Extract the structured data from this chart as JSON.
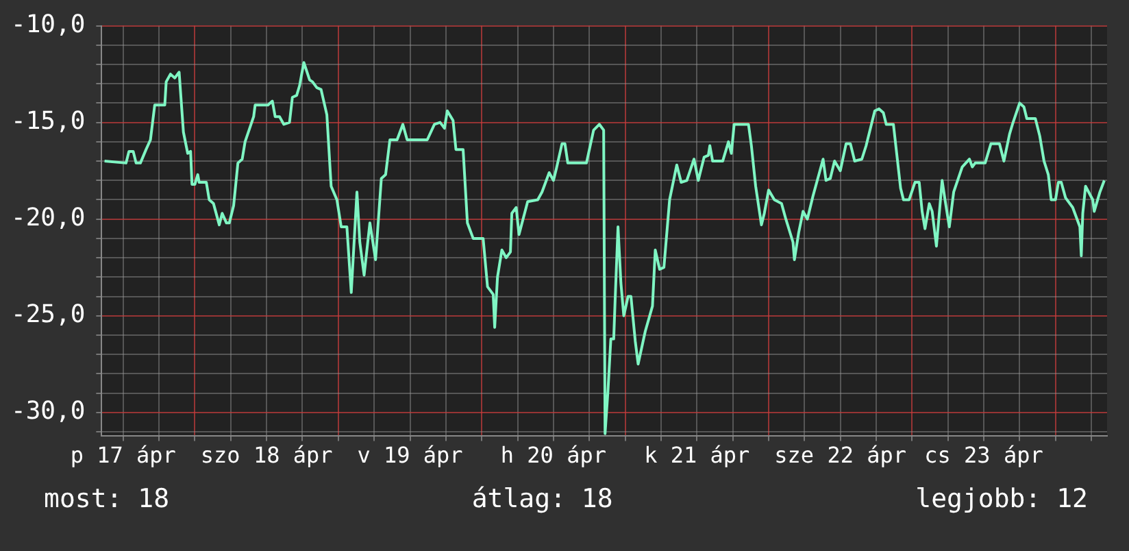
{
  "chart_data": {
    "type": "line",
    "annotations": [
      "most: 18",
      "átlag: 18",
      "legjobb: 12"
    ],
    "x": [
      "--04-17T08:53",
      "--04-17T12:29",
      "--04-17T12:58",
      "--04-17T13:41",
      "--04-17T14:10",
      "--04-17T14:53",
      "--04-17T15:50",
      "--04-17T16:34",
      "--04-17T17:17",
      "--04-17T18:58",
      "--04-17T19:12",
      "--04-17T19:55",
      "--04-17T20:38",
      "--04-17T21:22",
      "--04-17T22:05",
      "--04-17T22:48",
      "--04-17T23:17",
      "--04-17T23:31",
      "--04-18T00:00",
      "--04-18T00:29",
      "--04-18T00:43",
      "--04-18T01:55",
      "--04-18T02:24",
      "--04-18T03:07",
      "--04-18T04:05",
      "--04-18T04:34",
      "--04-18T05:17",
      "--04-18T05:46",
      "--04-18T06:29",
      "--04-18T07:12",
      "--04-18T07:55",
      "--04-18T08:24",
      "--04-18T09:50",
      "--04-18T10:05",
      "--04-18T12:14",
      "--04-18T12:58",
      "--04-18T13:26",
      "--04-18T14:10",
      "--04-18T14:53",
      "--04-18T15:50",
      "--04-18T16:19",
      "--04-18T17:02",
      "--04-18T17:31",
      "--04-18T18:14",
      "--04-18T19:12",
      "--04-18T19:41",
      "--04-18T20:24",
      "--04-18T21:07",
      "--04-18T22:05",
      "--04-18T22:48",
      "--04-18T23:46",
      "--04-19T00:29",
      "--04-19T01:26",
      "--04-19T02:10",
      "--04-19T03:07",
      "--04-19T03:36",
      "--04-19T04:19",
      "--04-19T05:17",
      "--04-19T06:14",
      "--04-19T07:12",
      "--04-19T07:55",
      "--04-19T08:38",
      "--04-19T09:50",
      "--04-19T10:48",
      "--04-19T11:31",
      "--04-19T14:53",
      "--04-19T16:05",
      "--04-19T17:02",
      "--04-19T17:46",
      "--04-19T18:14",
      "--04-19T19:12",
      "--04-19T19:41",
      "--04-19T20:53",
      "--04-19T21:36",
      "--04-19T22:34",
      "--04-20T00:14",
      "--04-20T00:58",
      "--04-20T01:55",
      "--04-20T02:10",
      "--04-20T02:38",
      "--04-20T03:22",
      "--04-20T04:05",
      "--04-20T04:48",
      "--04-20T05:02",
      "--04-20T05:46",
      "--04-20T06:14",
      "--04-20T07:41",
      "--04-20T09:22",
      "--04-20T10:05",
      "--04-20T11:17",
      "--04-20T12:00",
      "--04-20T12:29",
      "--04-20T13:26",
      "--04-20T13:55",
      "--04-20T14:24",
      "--04-20T17:31",
      "--04-20T18:43",
      "--04-20T19:41",
      "--04-20T20:24",
      "--04-20T20:38",
      "--04-20T21:07",
      "--04-20T21:36",
      "--04-20T22:05",
      "--04-20T22:19",
      "--04-20T22:48",
      "--04-20T23:17",
      "--04-20T23:46",
      "--04-21T00:29",
      "--04-21T00:58",
      "--04-21T01:41",
      "--04-21T02:10",
      "--04-21T03:22",
      "--04-21T04:34",
      "--04-21T05:02",
      "--04-21T05:46",
      "--04-21T06:29",
      "--04-21T07:26",
      "--04-21T08:38",
      "--04-21T09:22",
      "--04-21T10:19",
      "--04-21T11:31",
      "--04-21T12:14",
      "--04-21T13:12",
      "--04-21T13:55",
      "--04-21T14:10",
      "--04-21T14:38",
      "--04-21T16:19",
      "--04-21T17:17",
      "--04-21T17:46",
      "--04-21T18:14",
      "--04-21T19:55",
      "--04-21T20:38",
      "--04-21T21:07",
      "--04-21T21:50",
      "--04-21T22:48",
      "--04-21T23:17",
      "--04-22T00:00",
      "--04-22T00:58",
      "--04-22T02:10",
      "--04-22T02:53",
      "--04-22T04:05",
      "--04-22T04:19",
      "--04-22T05:02",
      "--04-22T05:46",
      "--04-22T06:29",
      "--04-22T07:26",
      "--04-22T09:07",
      "--04-22T09:36",
      "--04-22T10:19",
      "--04-22T11:02",
      "--04-22T12:00",
      "--04-22T12:58",
      "--04-22T13:41",
      "--04-22T14:24",
      "--04-22T15:36",
      "--04-22T16:19",
      "--04-22T17:46",
      "--04-22T18:29",
      "--04-22T19:12",
      "--04-22T19:41",
      "--04-22T20:53",
      "--04-22T22:05",
      "--04-22T22:34",
      "--04-22T23:31",
      "--04-23T00:29",
      "--04-23T01:12",
      "--04-23T01:41",
      "--04-23T02:10",
      "--04-23T02:53",
      "--04-23T03:22",
      "--04-23T04:05",
      "--04-23T05:02",
      "--04-23T05:31",
      "--04-23T06:14",
      "--04-23T06:58",
      "--04-23T08:24",
      "--04-23T09:36",
      "--04-23T10:05",
      "--04-23T10:34",
      "--04-23T12:14",
      "--04-23T13:12",
      "--04-23T14:38",
      "--04-23T15:22",
      "--04-23T16:19",
      "--04-23T16:48",
      "--04-23T18:00",
      "--04-23T18:43",
      "--04-23T19:12",
      "--04-23T20:38",
      "--04-23T21:22",
      "--04-23T22:05",
      "--04-23T22:48",
      "--04-23T23:17",
      "--04-24T00:00",
      "--04-24T00:29",
      "--04-24T00:58",
      "--04-24T01:41",
      "--04-24T02:53",
      "--04-24T04:05",
      "--04-24T04:19",
      "--04-24T04:34",
      "--04-24T05:02",
      "--04-24T06:14",
      "--04-24T06:29",
      "--04-24T07:26",
      "--04-24T08:10"
    ],
    "series": [
      {
        "color": "#7ff5c3",
        "values": [
          -17.0,
          -17.1,
          -16.5,
          -16.5,
          -17.1,
          -17.1,
          -16.4,
          -15.9,
          -14.1,
          -14.1,
          -12.9,
          -12.5,
          -12.7,
          -12.4,
          -15.5,
          -16.6,
          -16.5,
          -18.2,
          -18.2,
          -17.7,
          -18.1,
          -18.1,
          -19.0,
          -19.2,
          -20.3,
          -19.7,
          -20.2,
          -20.2,
          -19.3,
          -17.1,
          -16.9,
          -16.0,
          -14.7,
          -14.1,
          -14.1,
          -13.9,
          -14.7,
          -14.7,
          -15.1,
          -15.0,
          -13.7,
          -13.6,
          -13.1,
          -11.9,
          -12.8,
          -12.9,
          -13.2,
          -13.3,
          -14.6,
          -18.3,
          -19.0,
          -20.4,
          -20.4,
          -23.8,
          -18.6,
          -21.2,
          -22.9,
          -20.2,
          -22.1,
          -17.9,
          -17.7,
          -15.9,
          -15.9,
          -15.1,
          -15.9,
          -15.9,
          -15.1,
          -15.0,
          -15.3,
          -14.4,
          -14.9,
          -16.4,
          -16.4,
          -20.2,
          -21.0,
          -21.0,
          -23.5,
          -23.9,
          -25.6,
          -23.0,
          -21.6,
          -22.0,
          -21.7,
          -19.7,
          -19.4,
          -20.8,
          -19.1,
          -19.0,
          -18.6,
          -17.6,
          -18.0,
          -17.4,
          -16.1,
          -16.1,
          -17.1,
          -17.1,
          -15.4,
          -15.1,
          -15.4,
          -31.1,
          -28.9,
          -26.2,
          -26.2,
          -24.2,
          -20.4,
          -23.3,
          -25.0,
          -24.0,
          -24.0,
          -26.3,
          -27.5,
          -25.8,
          -24.5,
          -21.6,
          -22.6,
          -22.5,
          -19.0,
          -17.2,
          -18.1,
          -18.0,
          -16.9,
          -18.0,
          -16.8,
          -16.7,
          -16.2,
          -17.0,
          -17.0,
          -16.0,
          -16.6,
          -15.1,
          -15.1,
          -15.1,
          -16.2,
          -18.3,
          -20.3,
          -19.7,
          -18.5,
          -19.0,
          -19.2,
          -20.0,
          -21.2,
          -22.1,
          -20.7,
          -19.6,
          -20.0,
          -18.8,
          -16.9,
          -18.0,
          -17.9,
          -17.0,
          -17.5,
          -16.1,
          -16.1,
          -17.0,
          -16.9,
          -16.2,
          -14.4,
          -14.3,
          -14.5,
          -15.1,
          -15.1,
          -18.4,
          -19.0,
          -19.0,
          -18.1,
          -18.1,
          -19.6,
          -20.5,
          -19.2,
          -19.6,
          -21.4,
          -18.0,
          -19.0,
          -20.4,
          -18.6,
          -17.3,
          -16.9,
          -17.3,
          -17.1,
          -17.1,
          -16.1,
          -16.1,
          -17.0,
          -15.6,
          -15.1,
          -14.0,
          -14.2,
          -14.8,
          -14.8,
          -15.7,
          -17.0,
          -17.7,
          -19.0,
          -19.0,
          -18.1,
          -18.1,
          -18.9,
          -19.4,
          -20.4,
          -21.9,
          -19.7,
          -18.3,
          -19.0,
          -19.6,
          -18.6,
          -18.0
        ]
      }
    ],
    "xlim": [
      "--04-17T08:24",
      "--04-24T08:38"
    ],
    "xticks": [
      {
        "value": "--04-17T12:00",
        "label": "p 17 ápr"
      },
      {
        "value": "--04-17T18:00",
        "label": null
      },
      {
        "value": "--04-18T00:00",
        "label": null
      },
      {
        "value": "--04-18T06:00",
        "label": null
      },
      {
        "value": "--04-18T12:00",
        "label": "szo 18 ápr"
      },
      {
        "value": "--04-18T18:00",
        "label": null
      },
      {
        "value": "--04-19T00:00",
        "label": null
      },
      {
        "value": "--04-19T06:00",
        "label": null
      },
      {
        "value": "--04-19T12:00",
        "label": "v 19 ápr"
      },
      {
        "value": "--04-19T18:00",
        "label": null
      },
      {
        "value": "--04-20T00:00",
        "label": null
      },
      {
        "value": "--04-20T06:00",
        "label": null
      },
      {
        "value": "--04-20T12:00",
        "label": "h 20 ápr"
      },
      {
        "value": "--04-20T18:00",
        "label": null
      },
      {
        "value": "--04-21T00:00",
        "label": null
      },
      {
        "value": "--04-21T06:00",
        "label": null
      },
      {
        "value": "--04-21T12:00",
        "label": "k 21 ápr"
      },
      {
        "value": "--04-21T18:00",
        "label": null
      },
      {
        "value": "--04-22T00:00",
        "label": null
      },
      {
        "value": "--04-22T06:00",
        "label": null
      },
      {
        "value": "--04-22T12:00",
        "label": "sze 22 ápr"
      },
      {
        "value": "--04-22T18:00",
        "label": null
      },
      {
        "value": "--04-23T00:00",
        "label": null
      },
      {
        "value": "--04-23T06:00",
        "label": null
      },
      {
        "value": "--04-23T12:00",
        "label": "cs 23 ápr"
      },
      {
        "value": "--04-23T18:00",
        "label": null
      },
      {
        "value": "--04-24T00:00",
        "label": null
      },
      {
        "value": "--04-24T06:00",
        "label": null
      }
    ],
    "ylim": [
      -31.2,
      -10
    ],
    "yticks": [
      {
        "value": -31,
        "label": null
      },
      {
        "value": -30,
        "label": "-30,0"
      },
      {
        "value": -29,
        "label": null
      },
      {
        "value": -28,
        "label": null
      },
      {
        "value": -27,
        "label": null
      },
      {
        "value": -26,
        "label": null
      },
      {
        "value": -25,
        "label": "-25,0"
      },
      {
        "value": -24,
        "label": null
      },
      {
        "value": -23,
        "label": null
      },
      {
        "value": -22,
        "label": null
      },
      {
        "value": -21,
        "label": null
      },
      {
        "value": -20,
        "label": "-20,0"
      },
      {
        "value": -19,
        "label": null
      },
      {
        "value": -18,
        "label": null
      },
      {
        "value": -17,
        "label": null
      },
      {
        "value": -16,
        "label": null
      },
      {
        "value": -15,
        "label": "-15,0"
      },
      {
        "value": -14,
        "label": null
      },
      {
        "value": -13,
        "label": null
      },
      {
        "value": -12,
        "label": null
      },
      {
        "value": -11,
        "label": null
      },
      {
        "value": -10,
        "label": "-10,0"
      }
    ],
    "grid": true,
    "legend": false,
    "marker": "none",
    "line_style": "solid"
  }
}
